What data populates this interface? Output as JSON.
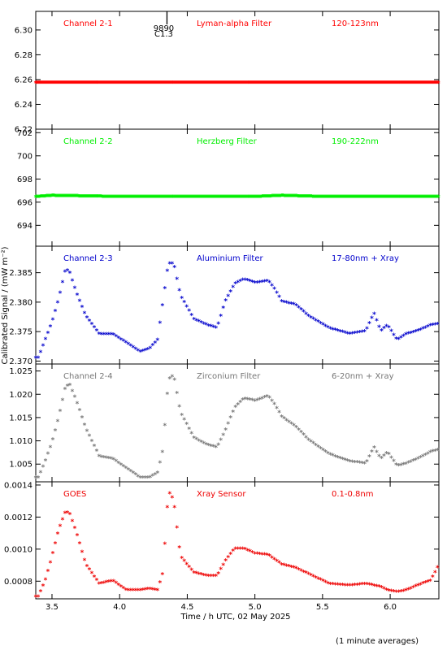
{
  "xlabel": "Time / h UTC, 02 May 2025",
  "ylabel": "Calibrated Signal / (mW m⁻²)",
  "footnote": "(1 minute averages)",
  "event_marker": {
    "x": 4.35,
    "label_top": "9890",
    "label_bottom": "C1.3"
  },
  "xlim": [
    3.38,
    6.36
  ],
  "xticks": [
    3.5,
    4.0,
    4.5,
    5.0,
    5.5,
    6.0
  ],
  "xtick_labels": [
    "3.5",
    "4.0",
    "4.5",
    "5.0",
    "5.5",
    "6.0"
  ],
  "chart_data": [
    {
      "type": "scatter",
      "channel": "Channel 2-1",
      "filter": "Lyman-alpha Filter",
      "band": "120-123nm",
      "color": "#ff0000",
      "ylim": [
        6.22,
        6.315
      ],
      "yticks": [
        6.22,
        6.24,
        6.26,
        6.28,
        6.3
      ],
      "ytick_labels": [
        "6.22",
        "6.24",
        "6.26",
        "6.28",
        "6.30"
      ],
      "x": [
        3.38,
        6.36
      ],
      "y": [
        6.257,
        6.257
      ]
    },
    {
      "type": "scatter",
      "channel": "Channel 2-2",
      "filter": "Herzberg Filter",
      "band": "190-222nm",
      "color": "#00ee00",
      "ylim": [
        692.2,
        702.3
      ],
      "yticks": [
        694,
        696,
        698,
        700,
        702
      ],
      "ytick_labels": [
        "694",
        "696",
        "698",
        "700",
        "702"
      ],
      "x": [
        3.38,
        3.5,
        4.0,
        4.5,
        5.0,
        5.2,
        5.5,
        6.0,
        6.36
      ],
      "y": [
        696.4,
        696.5,
        696.4,
        696.4,
        696.4,
        696.5,
        696.4,
        696.4,
        696.4
      ]
    },
    {
      "type": "scatter",
      "channel": "Channel 2-3",
      "filter": "Aluminium Filter",
      "band": "17-80nm + Xray",
      "color": "#0000cc",
      "ylim": [
        2.3695,
        2.3895
      ],
      "yticks": [
        2.37,
        2.375,
        2.38,
        2.385
      ],
      "ytick_labels": [
        "2.370",
        "2.375",
        "2.380",
        "2.385"
      ],
      "x": [
        3.4,
        3.45,
        3.5,
        3.55,
        3.6,
        3.63,
        3.68,
        3.75,
        3.85,
        3.95,
        4.05,
        4.15,
        4.22,
        4.28,
        4.32,
        4.36,
        4.4,
        4.45,
        4.55,
        4.65,
        4.72,
        4.78,
        4.85,
        4.92,
        5.0,
        5.1,
        5.15,
        5.2,
        5.3,
        5.4,
        5.55,
        5.7,
        5.82,
        5.88,
        5.93,
        5.98,
        6.05,
        6.12,
        6.2,
        6.3,
        6.36
      ],
      "y": [
        2.3705,
        2.3735,
        2.3765,
        2.3805,
        2.3855,
        2.385,
        2.3815,
        2.3775,
        2.3745,
        2.3745,
        2.373,
        2.3715,
        2.372,
        2.3735,
        2.38,
        2.3865,
        2.3865,
        2.381,
        2.377,
        2.376,
        2.3755,
        2.38,
        2.383,
        2.3838,
        2.3832,
        2.3835,
        2.382,
        2.38,
        2.3795,
        2.3775,
        2.3755,
        2.3745,
        2.375,
        2.378,
        2.375,
        2.376,
        2.3735,
        2.3745,
        2.375,
        2.376,
        2.3762
      ]
    },
    {
      "type": "scatter",
      "channel": "Channel 2-4",
      "filter": "Zirconium Filter",
      "band": "6-20nm + Xray",
      "color": "#777777",
      "ylim": [
        1.0012,
        1.0265
      ],
      "yticks": [
        1.005,
        1.01,
        1.015,
        1.02,
        1.025
      ],
      "ytick_labels": [
        "1.005",
        "1.010",
        "1.015",
        "1.020",
        "1.025"
      ],
      "x": [
        3.4,
        3.45,
        3.5,
        3.55,
        3.6,
        3.63,
        3.68,
        3.75,
        3.85,
        3.95,
        4.05,
        4.15,
        4.22,
        4.28,
        4.32,
        4.36,
        4.4,
        4.45,
        4.55,
        4.65,
        4.72,
        4.78,
        4.85,
        4.92,
        5.0,
        5.1,
        5.15,
        5.2,
        5.3,
        5.4,
        5.55,
        5.7,
        5.82,
        5.88,
        5.93,
        5.98,
        6.05,
        6.12,
        6.2,
        6.3,
        6.36
      ],
      "y": [
        1.002,
        1.0055,
        1.0095,
        1.015,
        1.0215,
        1.022,
        1.0185,
        1.0125,
        1.0065,
        1.006,
        1.004,
        1.002,
        1.002,
        1.003,
        1.008,
        1.023,
        1.024,
        1.016,
        1.0105,
        1.009,
        1.0085,
        1.012,
        1.017,
        1.019,
        1.0185,
        1.0195,
        1.0175,
        1.015,
        1.013,
        1.01,
        1.007,
        1.0055,
        1.005,
        1.0085,
        1.006,
        1.0075,
        1.0045,
        1.005,
        1.006,
        1.0075,
        1.008
      ]
    },
    {
      "type": "scatter",
      "channel": "GOES",
      "filter": "Xray Sensor",
      "band": "0.1-0.8nm",
      "color": "#ee0000",
      "ylim": [
        0.00069,
        0.00142
      ],
      "yticks": [
        0.0008,
        0.001,
        0.0012,
        0.0014
      ],
      "ytick_labels": [
        "0.0008",
        "0.0010",
        "0.0012",
        "0.0014"
      ],
      "x": [
        3.4,
        3.45,
        3.5,
        3.55,
        3.6,
        3.63,
        3.68,
        3.75,
        3.85,
        3.95,
        4.05,
        4.15,
        4.22,
        4.28,
        4.32,
        4.36,
        4.4,
        4.45,
        4.55,
        4.65,
        4.72,
        4.78,
        4.85,
        4.92,
        5.0,
        5.1,
        5.15,
        5.2,
        5.3,
        5.4,
        5.55,
        5.7,
        5.82,
        5.88,
        5.93,
        5.98,
        6.05,
        6.12,
        6.2,
        6.3,
        6.36
      ],
      "y": [
        0.0007,
        0.0008,
        0.00095,
        0.00112,
        0.00123,
        0.00122,
        0.0011,
        0.0009,
        0.00078,
        0.0008,
        0.00074,
        0.00074,
        0.00075,
        0.00074,
        0.00085,
        0.00136,
        0.0013,
        0.00095,
        0.00085,
        0.00083,
        0.00083,
        0.00092,
        0.001,
        0.001,
        0.00097,
        0.00096,
        0.00093,
        0.0009,
        0.00088,
        0.00084,
        0.00078,
        0.00077,
        0.00078,
        0.00077,
        0.00076,
        0.00074,
        0.00073,
        0.00074,
        0.00077,
        0.0008,
        0.0009
      ]
    }
  ]
}
